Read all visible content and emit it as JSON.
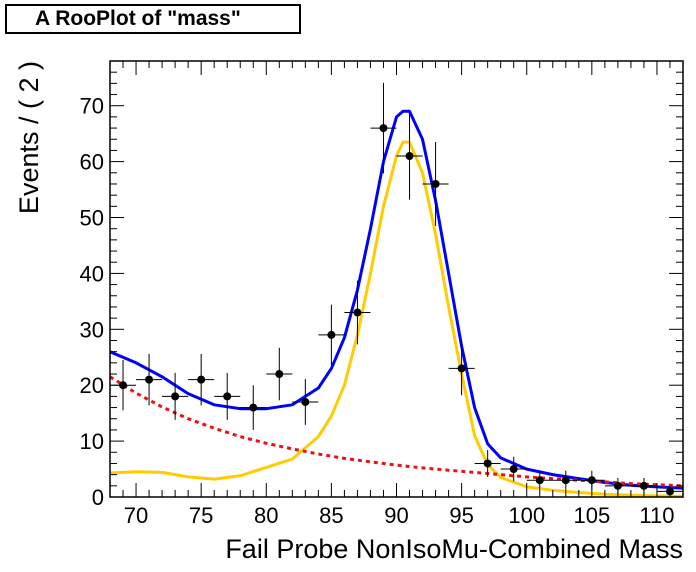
{
  "title": "A RooPlot of \"mass\"",
  "chart_data": {
    "type": "line",
    "title": "A RooPlot of \"mass\"",
    "xlabel": "Fail Probe NonIsoMu-Combined    Mass",
    "ylabel": "Events / ( 2 )",
    "xlim": [
      68,
      112
    ],
    "ylim": [
      0,
      78
    ],
    "grid": false,
    "x_ticks": [
      70,
      75,
      80,
      85,
      90,
      95,
      100,
      105,
      110
    ],
    "y_ticks": [
      0,
      10,
      20,
      30,
      40,
      50,
      60,
      70
    ],
    "points": {
      "x": [
        69,
        71,
        73,
        75,
        77,
        79,
        81,
        83,
        85,
        87,
        89,
        91,
        93,
        95,
        97,
        99,
        101,
        103,
        105,
        107,
        109,
        111
      ],
      "y": [
        20,
        21,
        18,
        21,
        18,
        16,
        22,
        17,
        29,
        33,
        66,
        61,
        56,
        23,
        6,
        5,
        3,
        3,
        3,
        2,
        2,
        1
      ],
      "err": [
        4.5,
        4.6,
        4.2,
        4.6,
        4.2,
        4.0,
        4.7,
        4.1,
        5.4,
        5.7,
        8.1,
        7.8,
        7.5,
        4.8,
        2.4,
        2.2,
        1.7,
        1.7,
        1.7,
        1.4,
        1.4,
        1.0
      ],
      "xerr": 1
    },
    "series": [
      {
        "color": "#0000ff",
        "style": "solid",
        "x": [
          68,
          70,
          72,
          74,
          76,
          78,
          80,
          82,
          84,
          85,
          86,
          87,
          88,
          89,
          90,
          90.5,
          91,
          92,
          93,
          94,
          95,
          96,
          97,
          98,
          100,
          102,
          104,
          106,
          108,
          110,
          112
        ],
        "y": [
          26,
          24,
          21.5,
          18.5,
          16.5,
          15.8,
          15.8,
          16.5,
          19.5,
          23,
          28.5,
          37,
          48,
          60,
          68,
          69,
          69,
          64,
          53,
          40,
          27,
          16,
          9.5,
          7,
          5,
          4,
          3.3,
          2.6,
          2.1,
          1.8,
          1.6
        ]
      },
      {
        "color": "#ffcc00",
        "style": "solid",
        "x": [
          68,
          70,
          72,
          74,
          76,
          78,
          80,
          82,
          84,
          85,
          86,
          87,
          88,
          89,
          90,
          90.5,
          91,
          92,
          93,
          94,
          95,
          96,
          97,
          98,
          100,
          102,
          104,
          106,
          108,
          110,
          112
        ],
        "y": [
          4.3,
          4.5,
          4.4,
          3.6,
          3.2,
          3.8,
          5.3,
          6.8,
          10.8,
          14.5,
          20,
          29,
          40,
          52,
          61,
          63.5,
          63.5,
          58,
          47,
          34,
          22,
          11,
          5.8,
          3.5,
          1.8,
          1.2,
          0.8,
          0.5,
          0.3,
          0.2,
          0.1
        ]
      },
      {
        "color": "#ee1111",
        "style": "dashed",
        "x": [
          68,
          70,
          72,
          74,
          76,
          78,
          80,
          82,
          84,
          86,
          88,
          90,
          92,
          94,
          96,
          98,
          100,
          102,
          104,
          106,
          108,
          110,
          112
        ],
        "y": [
          21.5,
          18.6,
          16.1,
          14.0,
          12.3,
          10.8,
          9.6,
          8.6,
          7.7,
          6.9,
          6.3,
          5.7,
          5.2,
          4.8,
          4.4,
          4.0,
          3.6,
          3.3,
          3.0,
          2.7,
          2.4,
          2.2,
          2.0
        ]
      }
    ]
  }
}
